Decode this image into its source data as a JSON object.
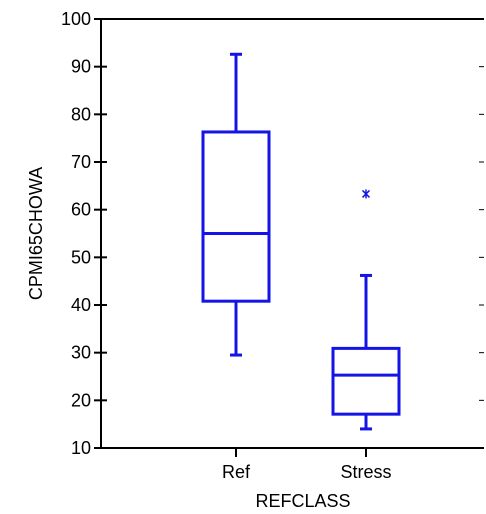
{
  "chart_data": {
    "type": "box",
    "title": "",
    "xlabel": "REFCLASS",
    "ylabel": "CPMI65CHOWA",
    "ylim": [
      10,
      100
    ],
    "yticks": [
      10,
      20,
      30,
      40,
      50,
      60,
      70,
      80,
      90,
      100
    ],
    "grid": false,
    "categories": [
      "Ref",
      "Stress"
    ],
    "boxes": [
      {
        "category": "Ref",
        "whisker_low": 29.5,
        "q1": 40.8,
        "median": 55.0,
        "q3": 76.3,
        "whisker_high": 92.6,
        "outliers": []
      },
      {
        "category": "Stress",
        "whisker_low": 14.0,
        "q1": 17.1,
        "median": 25.3,
        "q3": 30.9,
        "whisker_high": 46.2,
        "outliers": [
          63.3
        ]
      }
    ],
    "colors": {
      "box": "#1414e6",
      "axis": "#000000"
    }
  }
}
